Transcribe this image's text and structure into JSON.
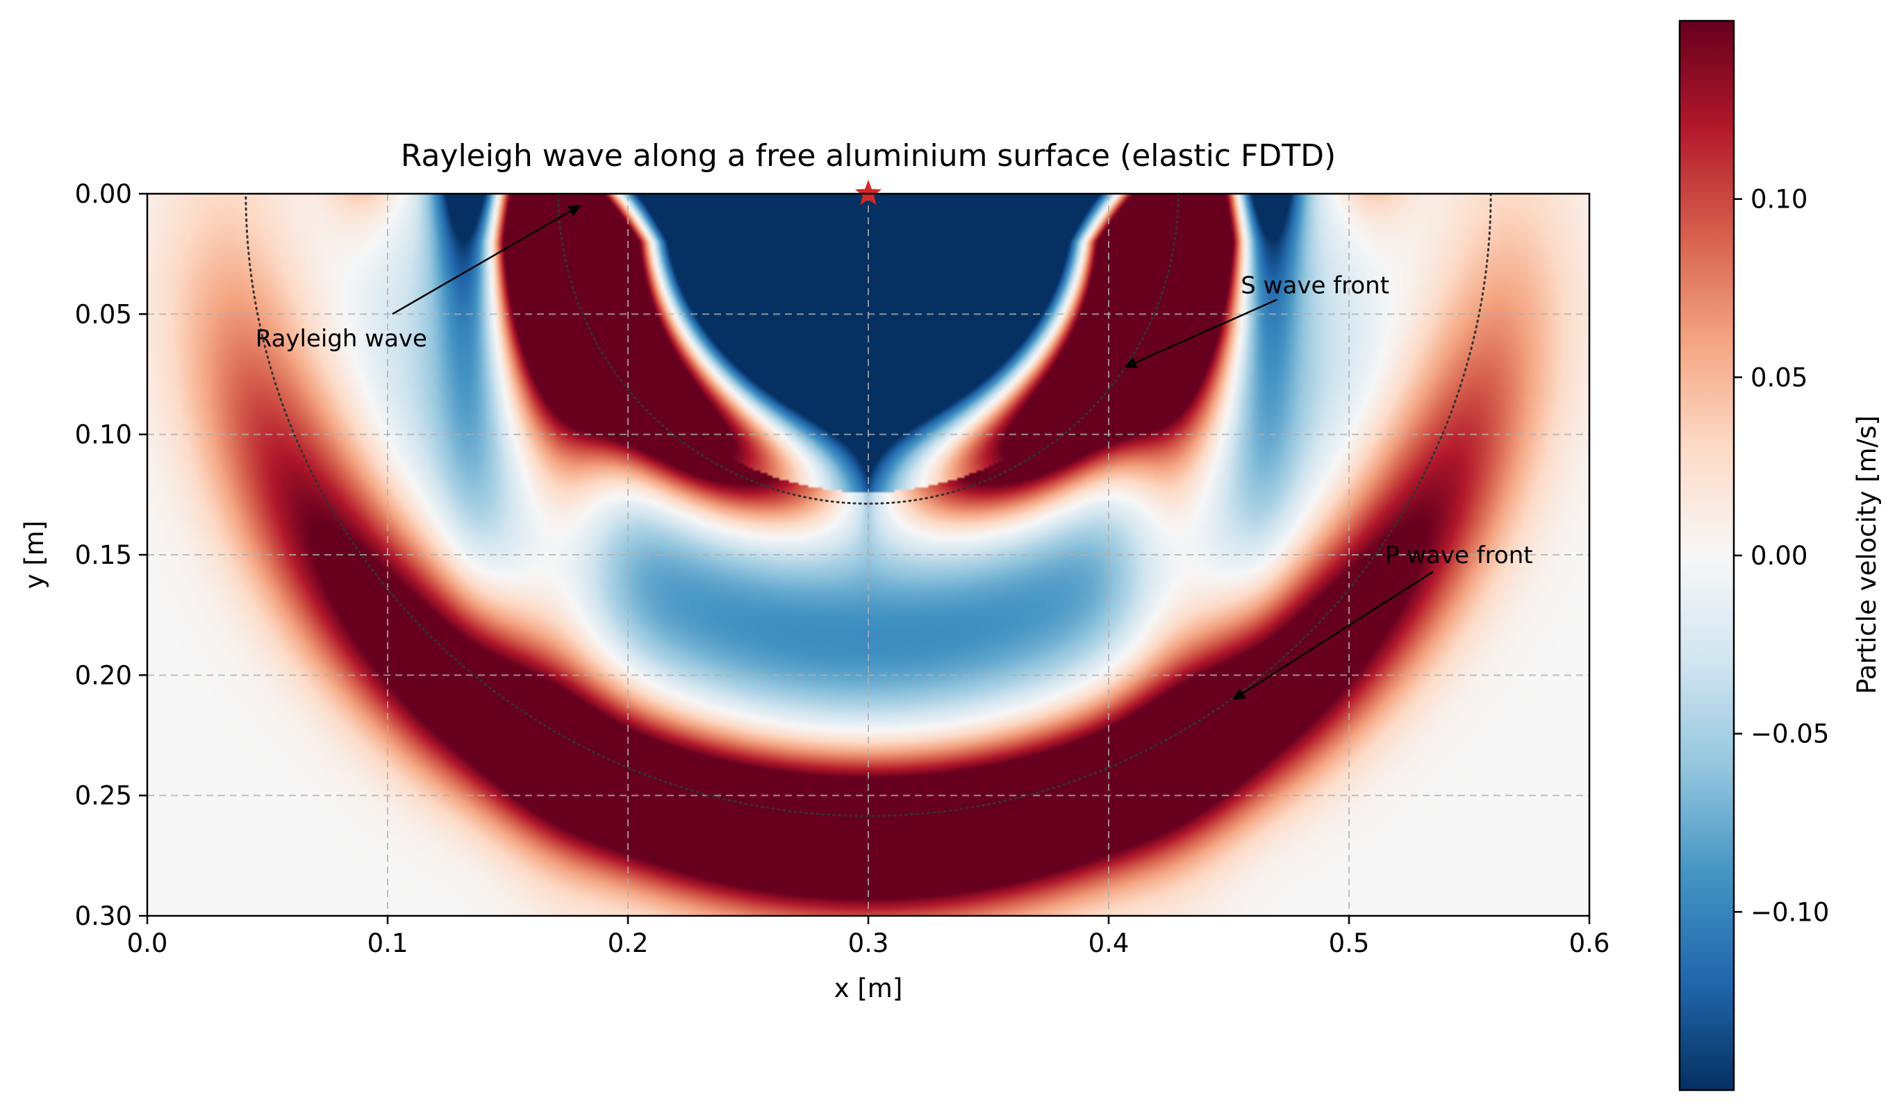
{
  "chart_data": {
    "type": "heatmap",
    "title": "Rayleigh wave along a free aluminium surface (elastic FDTD)",
    "xlabel": "x [m]",
    "ylabel": "y [m]",
    "xlim": [
      0.0,
      0.6
    ],
    "ylim": [
      0.3,
      0.0
    ],
    "y_inverted": true,
    "grid": true,
    "x_ticks": [
      0.0,
      0.1,
      0.2,
      0.3,
      0.4,
      0.5,
      0.6
    ],
    "y_ticks": [
      0.0,
      0.05,
      0.1,
      0.15,
      0.2,
      0.25,
      0.3
    ],
    "x_tick_labels": [
      "0.0",
      "0.1",
      "0.2",
      "0.3",
      "0.4",
      "0.5",
      "0.6"
    ],
    "y_tick_labels": [
      "0.00",
      "0.05",
      "0.10",
      "0.15",
      "0.20",
      "0.25",
      "0.30"
    ],
    "colormap": "RdBu_r",
    "colorbar": {
      "label": "Particle velocity [m/s]",
      "range": [
        -0.15,
        0.15
      ],
      "ticks": [
        0.1,
        0.05,
        0.0,
        -0.05,
        -0.1
      ],
      "tick_labels": [
        "0.10",
        "0.05",
        "0.00",
        "−0.05",
        "−0.10"
      ]
    },
    "source": {
      "x": 0.3,
      "y": 0.0,
      "marker": "star",
      "color": "#d62728"
    },
    "wavefronts": [
      {
        "name": "S wave front",
        "center": [
          0.3,
          0.0
        ],
        "radius": 0.129
      },
      {
        "name": "P wave front",
        "center": [
          0.3,
          0.0
        ],
        "radius": 0.259
      }
    ],
    "annotations": [
      {
        "text": "Rayleigh wave",
        "text_at": [
          0.045,
          0.06
        ],
        "arrow_tail": [
          0.102,
          0.05
        ],
        "arrow_head": [
          0.18,
          0.005
        ]
      },
      {
        "text": "S wave front",
        "text_at": [
          0.455,
          0.038
        ],
        "arrow_tail": [
          0.47,
          0.044
        ],
        "arrow_head": [
          0.407,
          0.072
        ]
      },
      {
        "text": "P wave front",
        "text_at": [
          0.515,
          0.15
        ],
        "arrow_tail": [
          0.535,
          0.157
        ],
        "arrow_head": [
          0.452,
          0.21
        ]
      }
    ]
  }
}
